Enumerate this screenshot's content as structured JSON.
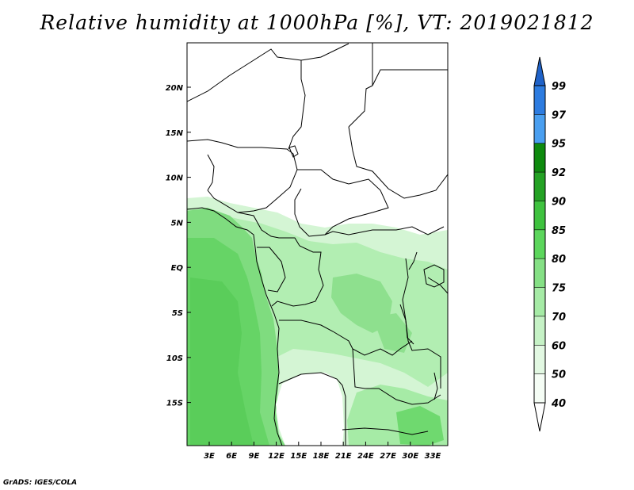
{
  "title": "Relative humidity at 1000hPa [%], VT: 2019021812",
  "credit": "GrADS: IGES/COLA",
  "map": {
    "lon_ticks": [
      "3E",
      "6E",
      "9E",
      "12E",
      "15E",
      "18E",
      "21E",
      "24E",
      "27E",
      "30E",
      "33E"
    ],
    "lat_ticks": [
      "20N",
      "15N",
      "10N",
      "5N",
      "EQ",
      "5S",
      "10S",
      "15S"
    ]
  },
  "colorbar": {
    "levels": [
      "99",
      "97",
      "95",
      "92",
      "90",
      "85",
      "80",
      "75",
      "70",
      "60",
      "50",
      "40"
    ],
    "colors": [
      "#1f62c8",
      "#2d7ce0",
      "#4a9ff0",
      "#0e8a0e",
      "#24a224",
      "#3fc23f",
      "#5cd65c",
      "#85e085",
      "#a6eba6",
      "#c6f2c6",
      "#e2f8e2",
      "#f5fdf5"
    ],
    "extend_top_color": "#1f62c8",
    "extend_bottom_color": "#ffffff"
  }
}
